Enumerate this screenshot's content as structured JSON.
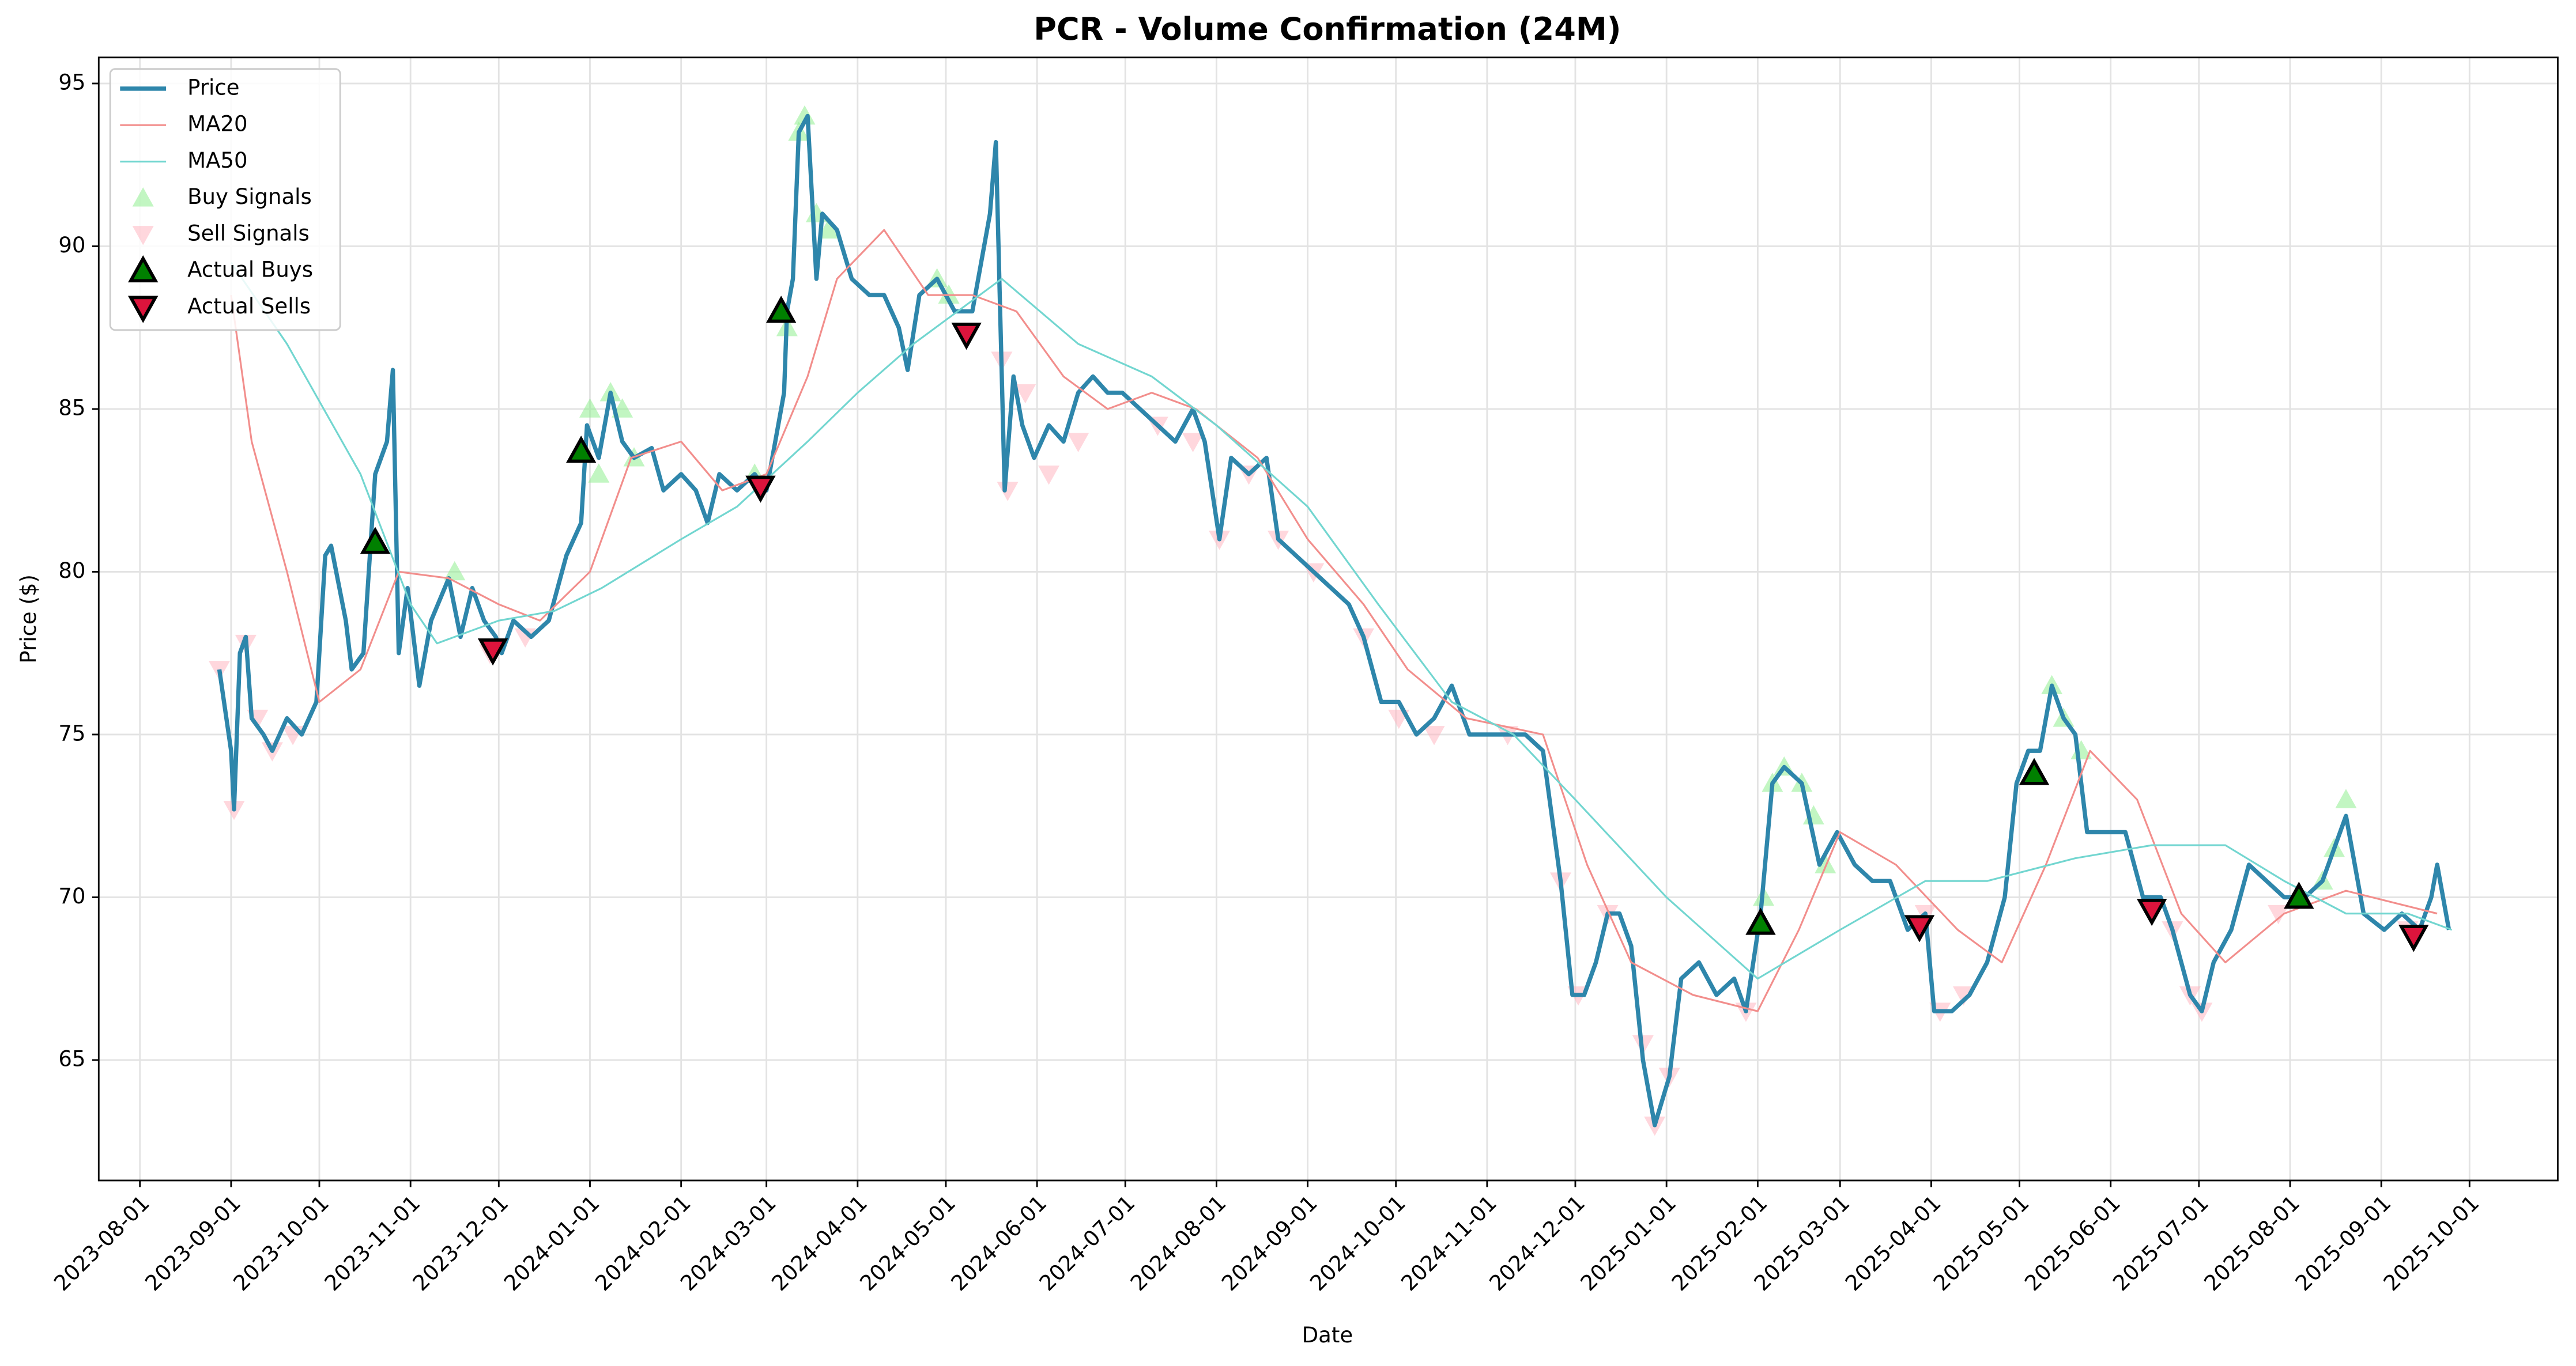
{
  "chart_data": {
    "type": "line",
    "title": "PCR - Volume Confirmation (24M)",
    "x_label": "Date",
    "y_label": "Price ($)",
    "xlim": [
      "2023-07-18",
      "2025-10-31"
    ],
    "ylim": [
      61.3,
      95.8
    ],
    "xticks": [
      "2023-08-01",
      "2023-09-01",
      "2023-10-01",
      "2023-11-01",
      "2023-12-01",
      "2024-01-01",
      "2024-02-01",
      "2024-03-01",
      "2024-04-01",
      "2024-05-01",
      "2024-06-01",
      "2024-07-01",
      "2024-08-01",
      "2024-09-01",
      "2024-10-01",
      "2024-11-01",
      "2024-12-01",
      "2025-01-01",
      "2025-02-01",
      "2025-03-01",
      "2025-04-01",
      "2025-05-01",
      "2025-06-01",
      "2025-07-01",
      "2025-08-01",
      "2025-09-01",
      "2025-10-01"
    ],
    "yticks": [
      65,
      70,
      75,
      80,
      85,
      90,
      95
    ],
    "grid": true,
    "legend": "upper left",
    "series": [
      {
        "name": "Price",
        "kind": "line",
        "color": "#2e86ab",
        "x": [
          "2023-08-28",
          "2023-09-01",
          "2023-09-02",
          "2023-09-04",
          "2023-09-06",
          "2023-09-08",
          "2023-09-12",
          "2023-09-15",
          "2023-09-20",
          "2023-09-25",
          "2023-09-30",
          "2023-10-03",
          "2023-10-05",
          "2023-10-10",
          "2023-10-12",
          "2023-10-16",
          "2023-10-20",
          "2023-10-24",
          "2023-10-26",
          "2023-10-28",
          "2023-10-31",
          "2023-11-04",
          "2023-11-08",
          "2023-11-14",
          "2023-11-18",
          "2023-11-22",
          "2023-11-26",
          "2023-11-30",
          "2023-12-02",
          "2023-12-06",
          "2023-12-12",
          "2023-12-18",
          "2023-12-24",
          "2023-12-29",
          "2023-12-31",
          "2024-01-04",
          "2024-01-08",
          "2024-01-12",
          "2024-01-16",
          "2024-01-22",
          "2024-01-26",
          "2024-02-01",
          "2024-02-06",
          "2024-02-10",
          "2024-02-14",
          "2024-02-20",
          "2024-02-26",
          "2024-03-01",
          "2024-03-05",
          "2024-03-07",
          "2024-03-08",
          "2024-03-10",
          "2024-03-12",
          "2024-03-15",
          "2024-03-18",
          "2024-03-20",
          "2024-03-25",
          "2024-03-30",
          "2024-04-05",
          "2024-04-10",
          "2024-04-15",
          "2024-04-18",
          "2024-04-22",
          "2024-04-28",
          "2024-05-04",
          "2024-05-10",
          "2024-05-16",
          "2024-05-18",
          "2024-05-21",
          "2024-05-24",
          "2024-05-27",
          "2024-05-31",
          "2024-06-05",
          "2024-06-10",
          "2024-06-15",
          "2024-06-20",
          "2024-06-25",
          "2024-06-30",
          "2024-07-06",
          "2024-07-12",
          "2024-07-18",
          "2024-07-24",
          "2024-07-28",
          "2024-08-02",
          "2024-08-06",
          "2024-08-12",
          "2024-08-18",
          "2024-08-22",
          "2024-08-28",
          "2024-09-03",
          "2024-09-09",
          "2024-09-15",
          "2024-09-20",
          "2024-09-26",
          "2024-10-02",
          "2024-10-08",
          "2024-10-14",
          "2024-10-20",
          "2024-10-26",
          "2024-11-01",
          "2024-11-08",
          "2024-11-14",
          "2024-11-20",
          "2024-11-26",
          "2024-11-30",
          "2024-12-04",
          "2024-12-08",
          "2024-12-12",
          "2024-12-16",
          "2024-12-20",
          "2024-12-24",
          "2024-12-28",
          "2025-01-02",
          "2025-01-06",
          "2025-01-12",
          "2025-01-18",
          "2025-01-24",
          "2025-01-28",
          "2025-02-02",
          "2025-02-06",
          "2025-02-10",
          "2025-02-16",
          "2025-02-22",
          "2025-02-28",
          "2025-03-06",
          "2025-03-12",
          "2025-03-18",
          "2025-03-24",
          "2025-03-30",
          "2025-04-02",
          "2025-04-08",
          "2025-04-14",
          "2025-04-20",
          "2025-04-26",
          "2025-04-30",
          "2025-05-04",
          "2025-05-08",
          "2025-05-12",
          "2025-05-16",
          "2025-05-20",
          "2025-05-24",
          "2025-05-30",
          "2025-06-06",
          "2025-06-12",
          "2025-06-18",
          "2025-06-22",
          "2025-06-28",
          "2025-07-02",
          "2025-07-06",
          "2025-07-12",
          "2025-07-18",
          "2025-07-24",
          "2025-07-30",
          "2025-08-06",
          "2025-08-12",
          "2025-08-16",
          "2025-08-20",
          "2025-08-26",
          "2025-09-02",
          "2025-09-08",
          "2025-09-14",
          "2025-09-18",
          "2025-09-20",
          "2025-09-24"
        ],
        "values": [
          77.0,
          74.5,
          72.7,
          77.5,
          78.0,
          75.5,
          75.0,
          74.5,
          75.5,
          75.0,
          76.0,
          80.5,
          80.8,
          78.5,
          77.0,
          77.5,
          83.0,
          84.0,
          86.2,
          77.5,
          79.5,
          76.5,
          78.5,
          79.8,
          78.0,
          79.5,
          78.5,
          78.0,
          77.5,
          78.5,
          78.0,
          78.5,
          80.5,
          81.5,
          84.5,
          83.5,
          85.5,
          84.0,
          83.5,
          83.8,
          82.5,
          83.0,
          82.5,
          81.5,
          83.0,
          82.5,
          83.0,
          82.5,
          84.5,
          85.5,
          88.0,
          89.0,
          93.5,
          94.0,
          89.0,
          91.0,
          90.5,
          89.0,
          88.5,
          88.5,
          87.5,
          86.2,
          88.5,
          89.0,
          88.0,
          88.0,
          91.0,
          93.2,
          82.5,
          86.0,
          84.5,
          83.5,
          84.5,
          84.0,
          85.5,
          86.0,
          85.5,
          85.5,
          85.0,
          84.5,
          84.0,
          85.0,
          84.0,
          81.0,
          83.5,
          83.0,
          83.5,
          81.0,
          80.5,
          80.0,
          79.5,
          79.0,
          78.0,
          76.0,
          76.0,
          75.0,
          75.5,
          76.5,
          75.0,
          75.0,
          75.0,
          75.0,
          74.5,
          70.5,
          67.0,
          67.0,
          68.0,
          69.5,
          69.5,
          68.5,
          65.0,
          63.0,
          64.5,
          67.5,
          68.0,
          67.0,
          67.5,
          66.5,
          69.5,
          73.5,
          74.0,
          73.5,
          71.0,
          72.0,
          71.0,
          70.5,
          70.5,
          69.0,
          69.5,
          66.5,
          66.5,
          67.0,
          68.0,
          70.0,
          73.5,
          74.5,
          74.5,
          76.5,
          75.5,
          75.0,
          72.0,
          72.0,
          72.0,
          70.0,
          70.0,
          69.0,
          67.0,
          66.5,
          68.0,
          69.0,
          71.0,
          70.5,
          70.0,
          70.0,
          70.5,
          71.5,
          72.5,
          69.5,
          69.0,
          69.5,
          69.0,
          70.0,
          71.0,
          69.0
        ]
      },
      {
        "name": "MA20",
        "kind": "line",
        "color": "#f28e8c",
        "x": [
          "2023-09-01",
          "2023-09-08",
          "2023-09-20",
          "2023-10-01",
          "2023-10-15",
          "2023-10-28",
          "2023-11-14",
          "2023-12-01",
          "2023-12-15",
          "2024-01-01",
          "2024-01-15",
          "2024-02-01",
          "2024-02-15",
          "2024-03-01",
          "2024-03-15",
          "2024-03-25",
          "2024-04-10",
          "2024-04-25",
          "2024-05-10",
          "2024-05-25",
          "2024-06-10",
          "2024-06-25",
          "2024-07-10",
          "2024-07-25",
          "2024-08-15",
          "2024-09-01",
          "2024-09-20",
          "2024-10-05",
          "2024-10-25",
          "2024-11-20",
          "2024-12-05",
          "2024-12-20",
          "2025-01-10",
          "2025-02-01",
          "2025-02-15",
          "2025-03-01",
          "2025-03-20",
          "2025-04-10",
          "2025-04-25",
          "2025-05-10",
          "2025-05-25",
          "2025-06-10",
          "2025-06-25",
          "2025-07-10",
          "2025-07-30",
          "2025-08-20",
          "2025-09-20"
        ],
        "values": [
          88.5,
          84.0,
          80.0,
          76.0,
          77.0,
          80.0,
          79.8,
          79.0,
          78.5,
          80.0,
          83.5,
          84.0,
          82.5,
          83.0,
          86.0,
          89.0,
          90.5,
          88.5,
          88.5,
          88.0,
          86.0,
          85.0,
          85.5,
          85.0,
          83.5,
          81.0,
          79.0,
          77.0,
          75.5,
          75.0,
          71.0,
          68.0,
          67.0,
          66.5,
          69.0,
          72.0,
          71.0,
          69.0,
          68.0,
          71.0,
          74.5,
          73.0,
          69.5,
          68.0,
          69.5,
          70.2,
          69.5
        ]
      },
      {
        "name": "MA50",
        "kind": "line",
        "color": "#72d6d0",
        "x": [
          "2023-09-01",
          "2023-09-20",
          "2023-10-15",
          "2023-11-01",
          "2023-11-10",
          "2023-12-01",
          "2023-12-20",
          "2024-01-05",
          "2024-02-01",
          "2024-02-20",
          "2024-03-15",
          "2024-04-01",
          "2024-04-20",
          "2024-05-20",
          "2024-06-15",
          "2024-07-10",
          "2024-08-01",
          "2024-09-01",
          "2024-09-25",
          "2024-10-20",
          "2024-11-10",
          "2024-12-01",
          "2025-01-01",
          "2025-02-01",
          "2025-03-01",
          "2025-03-30",
          "2025-04-20",
          "2025-05-20",
          "2025-06-15",
          "2025-07-10",
          "2025-07-30",
          "2025-08-20",
          "2025-09-10",
          "2025-09-25"
        ],
        "values": [
          89.5,
          87.0,
          83.0,
          79.0,
          77.8,
          78.5,
          78.8,
          79.5,
          81.0,
          82.0,
          84.0,
          85.5,
          87.0,
          89.0,
          87.0,
          86.0,
          84.5,
          82.0,
          79.0,
          76.0,
          75.0,
          73.0,
          70.0,
          67.5,
          69.0,
          70.5,
          70.5,
          71.2,
          71.6,
          71.6,
          70.5,
          69.5,
          69.5,
          69.0
        ]
      },
      {
        "name": "Buy Signals",
        "kind": "scatter",
        "marker": "up",
        "color": "#90ee90",
        "x": [
          "2023-11-16",
          "2024-01-01",
          "2024-01-04",
          "2024-01-08",
          "2024-01-12",
          "2024-01-16",
          "2024-02-26",
          "2024-03-08",
          "2024-03-12",
          "2024-03-14",
          "2024-03-18",
          "2024-03-22",
          "2024-04-28",
          "2024-05-02",
          "2025-02-03",
          "2025-02-06",
          "2025-02-10",
          "2025-02-16",
          "2025-02-20",
          "2025-02-24",
          "2025-05-12",
          "2025-05-16",
          "2025-05-22",
          "2025-08-12",
          "2025-08-16",
          "2025-08-20"
        ],
        "values": [
          80.0,
          85.0,
          83.0,
          85.5,
          85.0,
          83.5,
          83.0,
          87.5,
          93.5,
          94.0,
          91.0,
          90.5,
          89.0,
          88.5,
          70.0,
          73.5,
          74.0,
          73.5,
          72.5,
          71.0,
          76.5,
          75.5,
          74.5,
          70.5,
          71.5,
          73.0
        ]
      },
      {
        "name": "Sell Signals",
        "kind": "scatter",
        "marker": "down",
        "color": "#ffb6c1",
        "x": [
          "2023-08-28",
          "2023-09-02",
          "2023-09-06",
          "2023-09-10",
          "2023-09-15",
          "2023-09-22",
          "2023-11-28",
          "2023-12-10",
          "2024-05-20",
          "2024-05-22",
          "2024-05-28",
          "2024-06-05",
          "2024-06-15",
          "2024-07-12",
          "2024-07-24",
          "2024-08-02",
          "2024-08-12",
          "2024-08-22",
          "2024-09-03",
          "2024-09-20",
          "2024-10-02",
          "2024-10-14",
          "2024-11-08",
          "2024-11-26",
          "2024-12-02",
          "2024-12-12",
          "2024-12-24",
          "2024-12-28",
          "2025-01-02",
          "2025-01-28",
          "2025-03-30",
          "2025-04-04",
          "2025-04-12",
          "2025-06-22",
          "2025-06-28",
          "2025-07-02",
          "2025-07-28",
          "2025-09-10"
        ],
        "values": [
          77.0,
          72.7,
          77.8,
          75.5,
          74.5,
          75.0,
          77.5,
          78.0,
          86.5,
          82.5,
          85.5,
          83.0,
          84.0,
          84.5,
          84.0,
          81.0,
          83.0,
          81.0,
          80.0,
          78.0,
          75.5,
          75.0,
          75.0,
          70.5,
          67.0,
          69.5,
          65.5,
          63.0,
          64.5,
          66.5,
          69.5,
          66.5,
          67.0,
          69.0,
          67.0,
          66.5,
          69.5,
          69.0
        ]
      },
      {
        "name": "Actual Buys",
        "kind": "scatter",
        "marker": "up",
        "color": "#008000",
        "x": [
          "2023-10-20",
          "2023-12-29",
          "2024-03-06",
          "2025-02-02",
          "2025-05-06",
          "2025-08-04"
        ],
        "values": [
          80.9,
          83.7,
          88.0,
          69.2,
          73.8,
          70.0
        ]
      },
      {
        "name": "Actual Sells",
        "kind": "scatter",
        "marker": "down",
        "color": "#dc143c",
        "x": [
          "2023-11-29",
          "2024-02-28",
          "2024-05-08",
          "2025-03-28",
          "2025-06-15",
          "2025-09-12"
        ],
        "values": [
          77.6,
          82.6,
          87.3,
          69.1,
          69.6,
          68.8
        ]
      }
    ]
  }
}
